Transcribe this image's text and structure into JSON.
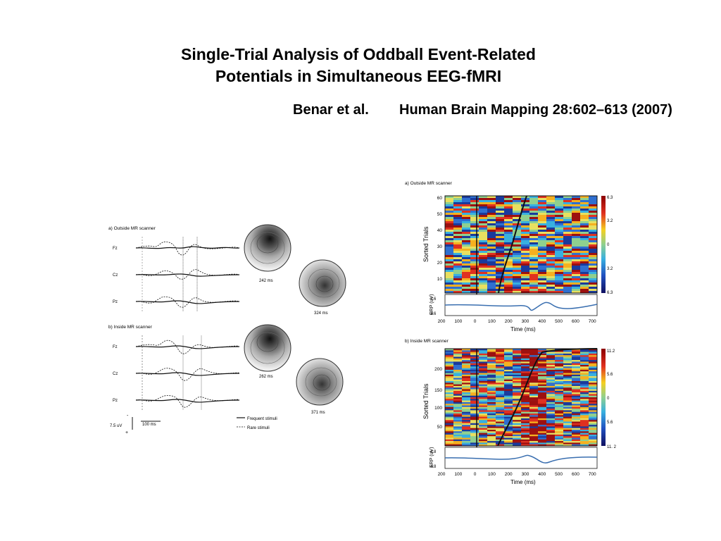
{
  "slide": {
    "title_line1": "Single-Trial Analysis of Oddball Event-Related",
    "title_line2": "Potentials in Simultaneous EEG-fMRI",
    "authors": "Benar et al.",
    "journal": "Human Brain Mapping 28:602–613 (2007)"
  },
  "left_figure": {
    "panel_a_label": "a) Outside MR scanner",
    "panel_b_label": "b) Inside MR scanner",
    "channels": [
      "Fz",
      "Cz",
      "Pz"
    ],
    "topo_a1_time": "242 ms",
    "topo_a2_time": "324 ms",
    "topo_b1_time": "262 ms",
    "topo_b2_time": "371 ms",
    "scale_amplitude": "7.5 uV",
    "scale_time": "100 ms",
    "scale_minus": "-",
    "scale_plus": "+",
    "legend_frequent": "Frequent stimuli",
    "legend_rare": "Rare stimuli"
  },
  "right_figure": {
    "panel_a_label": "a) Outside MR scanner",
    "panel_b_label": "b) Inside MR scanner",
    "ylabel_sorted": "Sorted Trials",
    "ylabel_erp": "ERP (uV)",
    "xlabel": "Time (ms)",
    "a_yticks": [
      "60",
      "50",
      "40",
      "30",
      "20",
      "10"
    ],
    "a_colorbar_ticks": [
      "6.3",
      "3.2",
      "0",
      "3.2",
      "6.3"
    ],
    "a_erp_ticks": [
      "3.6",
      "3.6"
    ],
    "b_yticks": [
      "200",
      "150",
      "100",
      "50"
    ],
    "b_colorbar_ticks": [
      "11.2",
      "5.6",
      "0",
      "5.6",
      "11. 2"
    ],
    "b_erp_ticks": [
      "4.8",
      "4.8"
    ],
    "xticks": [
      "200",
      "100",
      "0",
      "100",
      "200",
      "300",
      "400",
      "500",
      "600",
      "700"
    ]
  },
  "colors": {
    "background": "#ffffff",
    "text": "#000000",
    "erp_trace": "#3a6fb0"
  }
}
